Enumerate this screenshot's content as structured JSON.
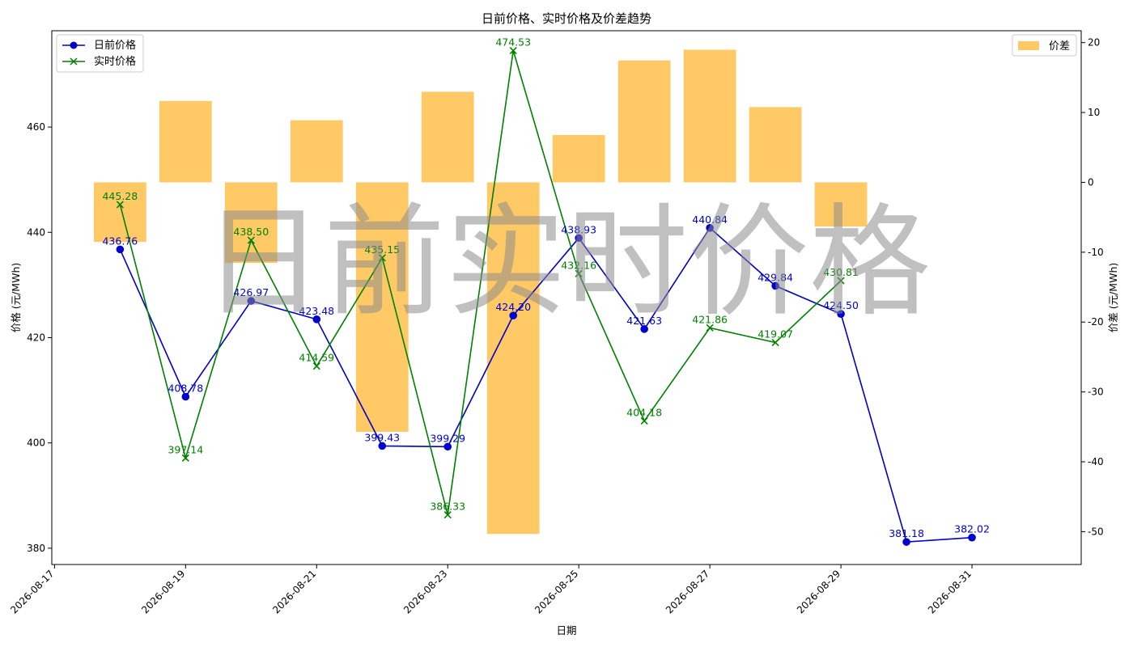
{
  "chart_data": {
    "type": "bar+line",
    "title": "日前价格、实时价格及价差趋势",
    "xlabel": "日期",
    "ylabel_left": "价格 (元/MWh)",
    "ylabel_right": "价差 (元/MWh)",
    "watermark": "日前实时价格",
    "x_ticks": [
      "2026-08-17",
      "2026-08-19",
      "2026-08-21",
      "2026-08-23",
      "2026-08-25",
      "2026-08-27",
      "2026-08-29",
      "2026-08-31"
    ],
    "y_left_ticks": [
      380,
      400,
      420,
      440,
      460
    ],
    "y_right_ticks": [
      20,
      10,
      0,
      -10,
      -20,
      -30,
      -40,
      -50
    ],
    "ylim_left": [
      376.9,
      478.3
    ],
    "ylim_right": [
      -54.7,
      21.7
    ],
    "xlim": [
      "2026-08-16 23:00",
      "2026-09-01 16:00"
    ],
    "dates": [
      "2026-08-18",
      "2026-08-19",
      "2026-08-20",
      "2026-08-21",
      "2026-08-22",
      "2026-08-23",
      "2026-08-24",
      "2026-08-25",
      "2026-08-26",
      "2026-08-27",
      "2026-08-28",
      "2026-08-29",
      "2026-08-30",
      "2026-08-31"
    ],
    "series": [
      {
        "name": "日前价格",
        "kind": "line",
        "axis": "left",
        "marker": "circle",
        "color": "#0000cc",
        "values": [
          436.76,
          408.78,
          426.97,
          423.48,
          399.43,
          399.29,
          424.2,
          438.93,
          421.63,
          440.84,
          429.84,
          424.5,
          381.18,
          382.02
        ],
        "labels": [
          "436.76",
          "408.78",
          "426.97",
          "423.48",
          "399.43",
          "399.29",
          "424.20",
          "438.93",
          "421.63",
          "440.84",
          "429.84",
          "424.50",
          "381.18",
          "382.02"
        ]
      },
      {
        "name": "实时价格",
        "kind": "line",
        "axis": "left",
        "marker": "x",
        "color": "#008000",
        "values": [
          445.28,
          397.14,
          438.5,
          414.59,
          435.15,
          386.33,
          474.53,
          432.16,
          404.18,
          421.86,
          419.07,
          430.81,
          null,
          null
        ],
        "labels": [
          "445.28",
          "397.14",
          "438.50",
          "414.59",
          "435.15",
          "386.33",
          "474.53",
          "432.16",
          "404.18",
          "421.86",
          "419.07",
          "430.81",
          "",
          ""
        ]
      },
      {
        "name": "价差",
        "kind": "bar",
        "axis": "right",
        "color": "#ffa500",
        "opacity": 0.6,
        "values": [
          -8.52,
          11.64,
          -11.53,
          8.89,
          -35.72,
          12.96,
          -50.33,
          6.77,
          17.45,
          18.98,
          10.77,
          -6.31,
          null,
          null
        ]
      }
    ],
    "legend": {
      "left_placement": "top-left",
      "right_placement": "top-right"
    },
    "grid": false
  }
}
